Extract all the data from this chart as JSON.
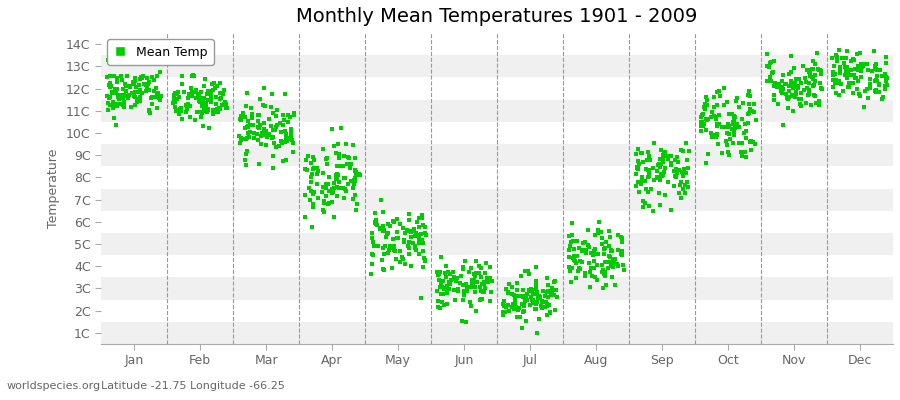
{
  "title": "Monthly Mean Temperatures 1901 - 2009",
  "xlabel_bottom": "Latitude -21.75 Longitude -66.25",
  "xlabel_right": "worldspecies.org",
  "ylabel": "Temperature",
  "yticks": [
    1,
    2,
    3,
    4,
    5,
    6,
    7,
    8,
    9,
    10,
    11,
    12,
    13,
    14
  ],
  "ytick_labels": [
    "1C",
    "2C",
    "3C",
    "4C",
    "5C",
    "6C",
    "7C",
    "8C",
    "9C",
    "10C",
    "11C",
    "12C",
    "13C",
    "14C"
  ],
  "ylim": [
    0.5,
    14.5
  ],
  "months": [
    "Jan",
    "Feb",
    "Mar",
    "Apr",
    "May",
    "Jun",
    "Jul",
    "Aug",
    "Sep",
    "Oct",
    "Nov",
    "Dec"
  ],
  "month_positions": [
    1,
    2,
    3,
    4,
    5,
    6,
    7,
    8,
    9,
    10,
    11,
    12
  ],
  "dashed_lines": [
    1.5,
    2.5,
    3.5,
    4.5,
    5.5,
    6.5,
    7.5,
    8.5,
    9.5,
    10.5,
    11.5
  ],
  "dot_color": "#00cc00",
  "dot_size": 5,
  "background_color": "#ffffff",
  "alt_band_color": "#f0f0f0",
  "title_fontsize": 14,
  "axis_label_fontsize": 9,
  "tick_fontsize": 9,
  "legend_label": "Mean Temp",
  "num_years": 109,
  "monthly_means": [
    11.8,
    11.4,
    10.2,
    8.0,
    5.2,
    3.1,
    2.6,
    4.3,
    8.2,
    10.5,
    12.2,
    12.6
  ],
  "monthly_stds": [
    0.55,
    0.55,
    0.65,
    0.85,
    0.75,
    0.55,
    0.55,
    0.65,
    0.75,
    0.85,
    0.65,
    0.55
  ],
  "random_seed": 42,
  "figsize": [
    9.0,
    4.0
  ],
  "dpi": 100
}
